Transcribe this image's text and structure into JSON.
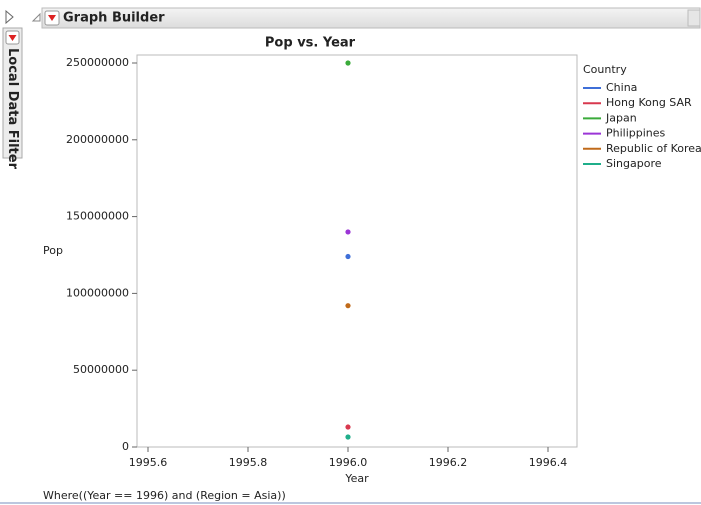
{
  "header": {
    "title": "Graph Builder"
  },
  "filter_tab": "Local Data Filter",
  "footer": "Where((Year == 1996) and (Region = Asia))",
  "chart_data": {
    "type": "scatter",
    "title": "Pop vs. Year",
    "x_label": "Year",
    "y_label": "Pop",
    "legend_title": "Country",
    "series": [
      {
        "name": "China",
        "color": "#3f6fd8",
        "x": [
          1996
        ],
        "values": [
          124000000
        ]
      },
      {
        "name": "Hong Kong SAR",
        "color": "#d8384e",
        "x": [
          1996
        ],
        "values": [
          13000000
        ]
      },
      {
        "name": "Japan",
        "color": "#3aab3a",
        "x": [
          1996
        ],
        "values": [
          250000000
        ]
      },
      {
        "name": "Philippines",
        "color": "#9b35d6",
        "x": [
          1996
        ],
        "values": [
          140000000
        ]
      },
      {
        "name": "Republic of Korea",
        "color": "#c06a1a",
        "x": [
          1996
        ],
        "values": [
          92000000
        ]
      },
      {
        "name": "Singapore",
        "color": "#1fae8a",
        "x": [
          1996
        ],
        "values": [
          6500000
        ]
      }
    ],
    "xlim": [
      1995.578,
      1996.458
    ],
    "xticks": [
      1995.6,
      1995.8,
      {
        "value": 1996,
        "label": "1996.0"
      },
      1996.2,
      1996.4
    ],
    "ylim": [
      0,
      255200000
    ],
    "yticks": [
      0,
      50000000,
      100000000,
      150000000,
      200000000,
      250000000
    ],
    "grid": false
  }
}
